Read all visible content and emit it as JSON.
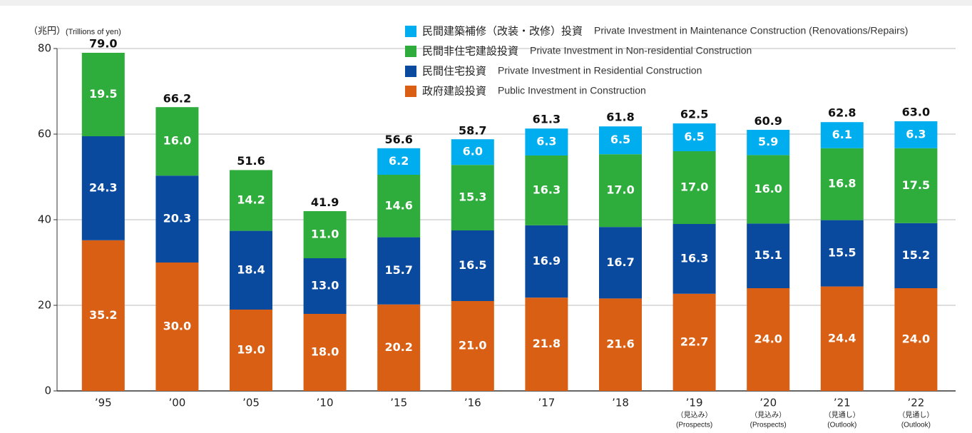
{
  "chart_data": {
    "type": "stacked_bar",
    "y_label_ja": "（兆円）",
    "y_label_en": "(Trillions of yen)",
    "categories": [
      "’95",
      "’00",
      "’05",
      "’10",
      "’15",
      "’16",
      "’17",
      "’18",
      "’19",
      "’20",
      "’21",
      "’22"
    ],
    "category_notes_ja": [
      null,
      null,
      null,
      null,
      null,
      null,
      null,
      null,
      "（見込み）",
      "（見込み）",
      "（見通し）",
      "（見通し）"
    ],
    "category_notes_en": [
      null,
      null,
      null,
      null,
      null,
      null,
      null,
      null,
      "(Prospects)",
      "(Prospects)",
      "(Outlook)",
      "(Outlook)"
    ],
    "series": [
      {
        "name": "政府建設投資",
        "label_en": "Public Investment in Construction",
        "color": "#d95f14",
        "values": [
          35.2,
          30.0,
          19.0,
          18.0,
          20.2,
          21.0,
          21.8,
          21.6,
          22.7,
          24.0,
          24.4,
          24.0
        ],
        "value_labels": [
          "35.2",
          "30.0",
          "19.0",
          "18.0",
          "20.2",
          "21.0",
          "21.8",
          "21.6",
          "22.7",
          "24.0",
          "24.4",
          "24.0"
        ]
      },
      {
        "name": "民間住宅投資",
        "label_en": "Private Investment in Residential Construction",
        "color": "#0a4a9e",
        "values": [
          24.3,
          20.3,
          18.4,
          13.0,
          15.7,
          16.5,
          16.9,
          16.7,
          16.3,
          15.1,
          15.5,
          15.2
        ],
        "value_labels": [
          "24.3",
          "20.3",
          "18.4",
          "13.0",
          "15.7",
          "16.5",
          "16.9",
          "16.7",
          "16.3",
          "15.1",
          "15.5",
          "15.2"
        ]
      },
      {
        "name": "民間非住宅建設投資",
        "label_en": "Private Investment in Non-residential Construction",
        "color": "#2ead3d",
        "values": [
          19.5,
          16.0,
          14.2,
          11.0,
          14.6,
          15.3,
          16.3,
          17.0,
          17.0,
          16.0,
          16.8,
          17.5
        ],
        "value_labels": [
          "19.5",
          "16.0",
          "14.2",
          "11.0",
          "14.6",
          "15.3",
          "16.3",
          "17.0",
          "17.0",
          "16.0",
          "16.8",
          "17.5"
        ]
      },
      {
        "name": "民間建築補修（改装・改修）投資",
        "label_en": "Private Investment in Maintenance Construction (Renovations/Repairs)",
        "color": "#00aeef",
        "values": [
          null,
          null,
          null,
          null,
          6.2,
          6.0,
          6.3,
          6.5,
          6.5,
          5.9,
          6.1,
          6.3
        ],
        "value_labels": [
          null,
          null,
          null,
          null,
          "6.2",
          "6.0",
          "6.3",
          "6.5",
          "6.5",
          "5.9",
          "6.1",
          "6.3"
        ]
      }
    ],
    "totals": [
      79.0,
      66.2,
      51.6,
      41.9,
      56.6,
      58.7,
      61.3,
      61.8,
      62.5,
      60.9,
      62.8,
      63.0
    ],
    "total_labels": [
      "79.0",
      "66.2",
      "51.6",
      "41.9",
      "56.6",
      "58.7",
      "61.3",
      "61.8",
      "62.5",
      "60.9",
      "62.8",
      "63.0"
    ],
    "ylim": [
      0,
      80
    ],
    "yticks": [
      0,
      20,
      40,
      60,
      80
    ],
    "grid": true
  }
}
